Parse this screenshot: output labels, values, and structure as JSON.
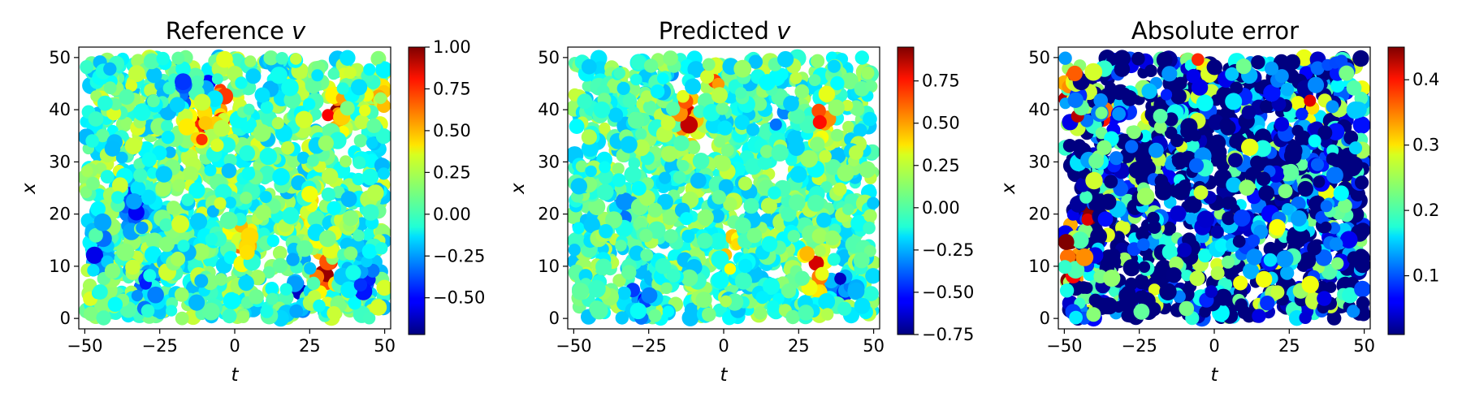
{
  "chart_data": [
    {
      "type": "scatter",
      "title": "Reference v",
      "title_main": "Reference ",
      "title_var": "v",
      "xlabel": "t",
      "ylabel": "x",
      "xlim": [
        -52,
        52
      ],
      "ylim": [
        -2,
        52
      ],
      "xticks": [
        -50,
        -25,
        0,
        25,
        50
      ],
      "xtick_labels": [
        "−50",
        "−25",
        "0",
        "25",
        "50"
      ],
      "yticks": [
        0,
        10,
        20,
        30,
        40,
        50
      ],
      "ytick_labels": [
        "0",
        "10",
        "20",
        "30",
        "40",
        "50"
      ],
      "colormap": "jet",
      "colorbar_range": [
        -0.72,
        1.0
      ],
      "colorbar_ticks": [
        1.0,
        0.75,
        0.5,
        0.25,
        0.0,
        -0.25,
        -0.5
      ],
      "colorbar_tick_labels": [
        "1.00",
        "0.75",
        "0.50",
        "0.25",
        "0.00",
        "−0.25",
        "−0.50"
      ],
      "features": [
        {
          "t": -7,
          "x": 45,
          "v": -0.65
        },
        {
          "t": -4,
          "x": 44,
          "v": 0.95
        },
        {
          "t": -13,
          "x": 40,
          "v": 0.85
        },
        {
          "t": -12,
          "x": 36,
          "v": 0.55
        },
        {
          "t": -16,
          "x": 43,
          "v": -0.45
        },
        {
          "t": 33,
          "x": 40,
          "v": 0.85
        },
        {
          "t": 30,
          "x": 9,
          "v": 0.8
        },
        {
          "t": -33,
          "x": 22,
          "v": -0.5
        },
        {
          "t": -45,
          "x": 13,
          "v": -0.45
        },
        {
          "t": 2,
          "x": 15,
          "v": 0.5
        },
        {
          "t": 43,
          "x": 8,
          "v": -0.55
        },
        {
          "t": 22,
          "x": 6,
          "v": -0.4
        },
        {
          "t": -29,
          "x": 6,
          "v": -0.4
        },
        {
          "t": -4,
          "x": 38,
          "v": 0.45
        },
        {
          "t": 48,
          "x": 42,
          "v": 0.35
        },
        {
          "t": 25,
          "x": 20,
          "v": 0.35
        }
      ],
      "base_level": 0.05,
      "noise": 0.25
    },
    {
      "type": "scatter",
      "title": "Predicted v",
      "title_main": "Predicted ",
      "title_var": "v",
      "xlabel": "t",
      "ylabel": "x",
      "xlim": [
        -52,
        52
      ],
      "ylim": [
        -2,
        52
      ],
      "xticks": [
        -50,
        -25,
        0,
        25,
        50
      ],
      "xtick_labels": [
        "−50",
        "−25",
        "0",
        "25",
        "50"
      ],
      "yticks": [
        0,
        10,
        20,
        30,
        40,
        50
      ],
      "ytick_labels": [
        "0",
        "10",
        "20",
        "30",
        "40",
        "50"
      ],
      "colormap": "jet",
      "colorbar_range": [
        -0.75,
        0.95
      ],
      "colorbar_ticks": [
        0.75,
        0.5,
        0.25,
        0.0,
        -0.25,
        -0.5,
        -0.75
      ],
      "colorbar_tick_labels": [
        "0.75",
        "0.50",
        "0.25",
        "0.00",
        "−0.25",
        "−0.50",
        "−0.75"
      ],
      "features": [
        {
          "t": -6,
          "x": 45,
          "v": -0.6
        },
        {
          "t": -4,
          "x": 46,
          "v": 0.85
        },
        {
          "t": -13,
          "x": 40,
          "v": 0.75
        },
        {
          "t": -11,
          "x": 36,
          "v": 0.5
        },
        {
          "t": -16,
          "x": 43,
          "v": -0.4
        },
        {
          "t": 30,
          "x": 9,
          "v": 0.9
        },
        {
          "t": 33,
          "x": 38,
          "v": 0.6
        },
        {
          "t": -32,
          "x": 22,
          "v": -0.3
        },
        {
          "t": -28,
          "x": 4,
          "v": -0.45
        },
        {
          "t": 39,
          "x": 7,
          "v": -0.5
        },
        {
          "t": 20,
          "x": 38,
          "v": -0.35
        },
        {
          "t": 2,
          "x": 14,
          "v": 0.4
        }
      ],
      "base_level": 0.0,
      "noise": 0.22
    },
    {
      "type": "scatter",
      "title": "Absolute error",
      "title_main": "Absolute error",
      "title_var": "",
      "xlabel": "t",
      "ylabel": "x",
      "xlim": [
        -52,
        52
      ],
      "ylim": [
        -2,
        52
      ],
      "xticks": [
        -50,
        -25,
        0,
        25,
        50
      ],
      "xtick_labels": [
        "−50",
        "−25",
        "0",
        "25",
        "50"
      ],
      "yticks": [
        0,
        10,
        20,
        30,
        40,
        50
      ],
      "ytick_labels": [
        "0",
        "10",
        "20",
        "30",
        "40",
        "50"
      ],
      "colormap": "jet",
      "colorbar_range": [
        0.01,
        0.45
      ],
      "colorbar_ticks": [
        0.4,
        0.3,
        0.2,
        0.1
      ],
      "colorbar_tick_labels": [
        "0.4",
        "0.3",
        "0.2",
        "0.1"
      ],
      "features": [
        {
          "t": -48,
          "x": 10,
          "v": 0.4
        },
        {
          "t": -48,
          "x": 14,
          "v": 0.42
        },
        {
          "t": -49,
          "x": 44,
          "v": 0.38
        },
        {
          "t": -46,
          "x": 38,
          "v": 0.3
        },
        {
          "t": -37,
          "x": 39,
          "v": 0.3
        },
        {
          "t": -8,
          "x": 50,
          "v": 0.3
        },
        {
          "t": -43,
          "x": 20,
          "v": 0.3
        },
        {
          "t": 33,
          "x": 43,
          "v": 0.28
        },
        {
          "t": 15,
          "x": 14,
          "v": 0.25
        }
      ],
      "base_level": 0.06,
      "noise": 0.22
    }
  ]
}
